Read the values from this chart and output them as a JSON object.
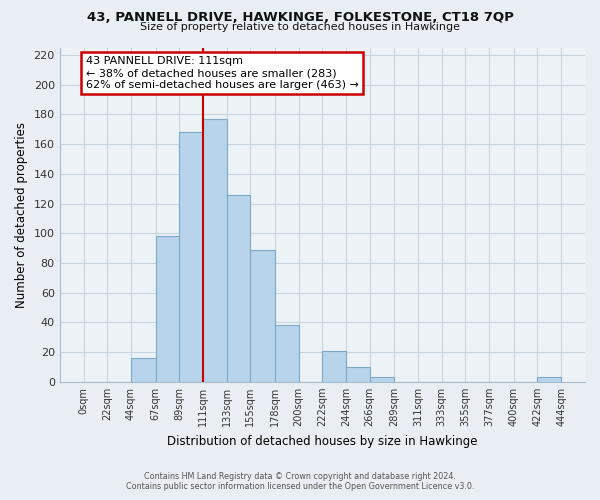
{
  "title": "43, PANNELL DRIVE, HAWKINGE, FOLKESTONE, CT18 7QP",
  "subtitle": "Size of property relative to detached houses in Hawkinge",
  "xlabel": "Distribution of detached houses by size in Hawkinge",
  "ylabel": "Number of detached properties",
  "bar_color": "#b8d4ea",
  "bar_edge_color": "#7aaac8",
  "bin_edges": [
    0,
    22,
    44,
    67,
    89,
    111,
    133,
    155,
    178,
    200,
    222,
    244,
    266,
    289,
    311,
    333,
    355,
    377,
    400,
    422,
    444
  ],
  "bar_heights": [
    0,
    0,
    16,
    98,
    168,
    177,
    126,
    89,
    38,
    0,
    21,
    10,
    3,
    0,
    0,
    0,
    0,
    0,
    0,
    3
  ],
  "tick_labels": [
    "0sqm",
    "22sqm",
    "44sqm",
    "67sqm",
    "89sqm",
    "111sqm",
    "133sqm",
    "155sqm",
    "178sqm",
    "200sqm",
    "222sqm",
    "244sqm",
    "266sqm",
    "289sqm",
    "311sqm",
    "333sqm",
    "355sqm",
    "377sqm",
    "400sqm",
    "422sqm",
    "444sqm"
  ],
  "ylim": [
    0,
    225
  ],
  "yticks": [
    0,
    20,
    40,
    60,
    80,
    100,
    120,
    140,
    160,
    180,
    200,
    220
  ],
  "vline_x": 111,
  "vline_color": "#cc0000",
  "annotation_title": "43 PANNELL DRIVE: 111sqm",
  "annotation_line1": "← 38% of detached houses are smaller (283)",
  "annotation_line2": "62% of semi-detached houses are larger (463) →",
  "annotation_box_color": "#ffffff",
  "annotation_box_edge": "#cc0000",
  "footnote1": "Contains HM Land Registry data © Crown copyright and database right 2024.",
  "footnote2": "Contains public sector information licensed under the Open Government Licence v3.0.",
  "background_color": "#e8eef4",
  "plot_bg_color": "#edf2f7",
  "grid_color": "#c8d4de"
}
